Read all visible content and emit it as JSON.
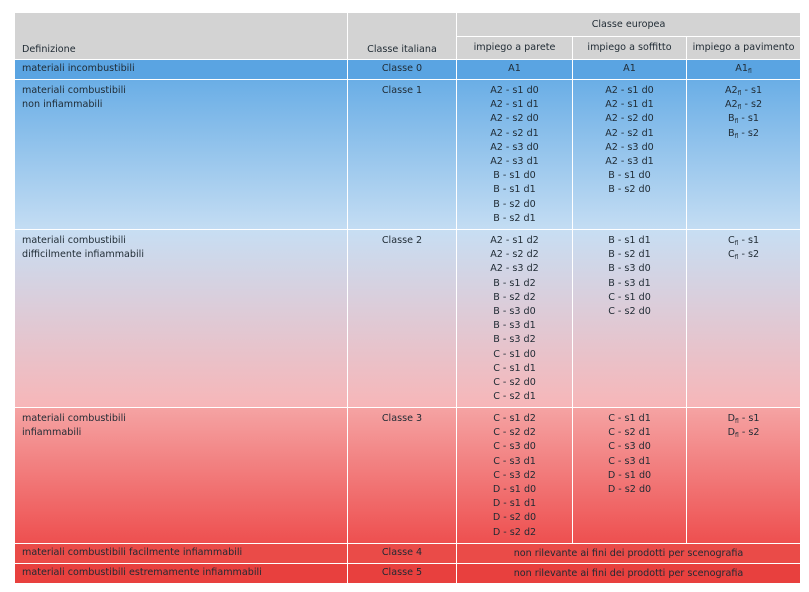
{
  "header": {
    "definizione": "Definizione",
    "classe_italiana": "Classe italiana",
    "classe_europea": "Classe europea",
    "parete": "impiego a parete",
    "soffitto": "impiego a soffitto",
    "pavimento": "impiego a pavimento"
  },
  "rows": [
    {
      "def": [
        "materiali incombustibili"
      ],
      "classe": "Classe 0",
      "parete": [
        "A1"
      ],
      "soffitto": [
        "A1"
      ],
      "pavimento": [
        {
          "main": "A1",
          "sub": "fl",
          "rest": ""
        }
      ]
    },
    {
      "def": [
        "materiali combustibili",
        "non infiammabili"
      ],
      "classe": "Classe 1",
      "parete": [
        "A2 - s1 d0",
        "A2 - s1 d1",
        "A2 - s2 d0",
        "A2 - s2 d1",
        "A2 - s3 d0",
        "A2 - s3 d1",
        "B - s1 d0",
        "B - s1 d1",
        "B - s2 d0",
        "B - s2 d1"
      ],
      "soffitto": [
        "A2 - s1 d0",
        "A2 - s1 d1",
        "A2 - s2 d0",
        "A2 - s2 d1",
        "A2 - s3 d0",
        "A2 - s3 d1",
        "B - s1 d0",
        "B - s2 d0"
      ],
      "pavimento": [
        {
          "main": "A2",
          "sub": "fl",
          "rest": " - s1"
        },
        {
          "main": "A2",
          "sub": "fl",
          "rest": " - s2"
        },
        {
          "main": "B",
          "sub": "fl",
          "rest": " - s1"
        },
        {
          "main": "B",
          "sub": "fl",
          "rest": " - s2"
        }
      ]
    },
    {
      "def": [
        "materiali combustibili",
        "difficilmente infiammabili"
      ],
      "classe": "Classe 2",
      "parete": [
        "A2 - s1 d2",
        "A2 - s2 d2",
        "A2 - s3 d2",
        "B - s1 d2",
        "B - s2 d2",
        "B - s3 d0",
        "B - s3 d1",
        "B - s3 d2",
        "C - s1 d0",
        "C - s1 d1",
        "C - s2 d0",
        "C - s2 d1"
      ],
      "soffitto": [
        "B - s1 d1",
        "B - s2 d1",
        "B - s3 d0",
        "B - s3 d1",
        "C - s1 d0",
        "C - s2 d0"
      ],
      "pavimento": [
        {
          "main": "C",
          "sub": "fl",
          "rest": " - s1"
        },
        {
          "main": "C",
          "sub": "fl",
          "rest": " - s2"
        }
      ]
    },
    {
      "def": [
        "materiali combustibili",
        "infiammabili"
      ],
      "classe": "Classe 3",
      "parete": [
        "C - s1 d2",
        "C - s2 d2",
        "C - s3 d0",
        "C - s3 d1",
        "C - s3 d2",
        "D - s1 d0",
        "D - s1 d1",
        "D - s2 d0",
        "D - s2 d2"
      ],
      "soffitto": [
        "C - s1 d1",
        "C - s2 d1",
        "C - s3 d0",
        "C - s3 d1",
        "D - s1 d0",
        "D - s2 d0"
      ],
      "pavimento": [
        {
          "main": "D",
          "sub": "fl",
          "rest": " - s1"
        },
        {
          "main": "D",
          "sub": "fl",
          "rest": " - s2"
        }
      ]
    },
    {
      "def": [
        "materiali combustibili facilmente infiammabili"
      ],
      "classe": "Classe 4",
      "note": "non rilevante ai fini dei prodotti per scenografia"
    },
    {
      "def": [
        "materiali combustibili estremamente infiammabili"
      ],
      "classe": "Classe 5",
      "note": "non rilevante ai fini dei prodotti per scenografia"
    }
  ]
}
